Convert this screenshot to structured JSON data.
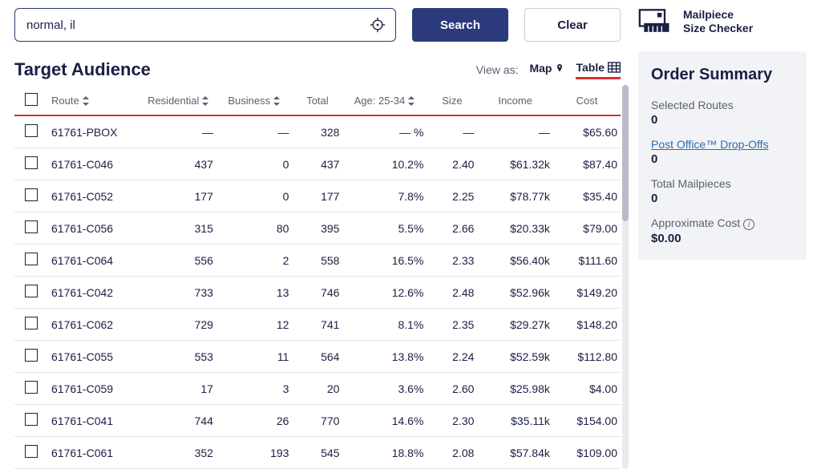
{
  "search": {
    "value": "normal, il"
  },
  "buttons": {
    "search": "Search",
    "clear": "Clear"
  },
  "tool": {
    "line1": "Mailpiece",
    "line2": "Size Checker"
  },
  "heading": "Target Audience",
  "viewAs": {
    "label": "View as:",
    "map": "Map",
    "table": "Table",
    "active": "table"
  },
  "columns": {
    "route": "Route",
    "residential": "Residential",
    "business": "Business",
    "total": "Total",
    "age": "Age: 25-34",
    "size": "Size",
    "income": "Income",
    "cost": "Cost"
  },
  "rows": [
    {
      "route": "61761-PBOX",
      "residential": "—",
      "business": "—",
      "total": "328",
      "age": "— %",
      "size": "—",
      "income": "—",
      "cost": "$65.60"
    },
    {
      "route": "61761-C046",
      "residential": "437",
      "business": "0",
      "total": "437",
      "age": "10.2%",
      "size": "2.40",
      "income": "$61.32k",
      "cost": "$87.40"
    },
    {
      "route": "61761-C052",
      "residential": "177",
      "business": "0",
      "total": "177",
      "age": "7.8%",
      "size": "2.25",
      "income": "$78.77k",
      "cost": "$35.40"
    },
    {
      "route": "61761-C056",
      "residential": "315",
      "business": "80",
      "total": "395",
      "age": "5.5%",
      "size": "2.66",
      "income": "$20.33k",
      "cost": "$79.00"
    },
    {
      "route": "61761-C064",
      "residential": "556",
      "business": "2",
      "total": "558",
      "age": "16.5%",
      "size": "2.33",
      "income": "$56.40k",
      "cost": "$111.60"
    },
    {
      "route": "61761-C042",
      "residential": "733",
      "business": "13",
      "total": "746",
      "age": "12.6%",
      "size": "2.48",
      "income": "$52.96k",
      "cost": "$149.20"
    },
    {
      "route": "61761-C062",
      "residential": "729",
      "business": "12",
      "total": "741",
      "age": "8.1%",
      "size": "2.35",
      "income": "$29.27k",
      "cost": "$148.20"
    },
    {
      "route": "61761-C055",
      "residential": "553",
      "business": "11",
      "total": "564",
      "age": "13.8%",
      "size": "2.24",
      "income": "$52.59k",
      "cost": "$112.80"
    },
    {
      "route": "61761-C059",
      "residential": "17",
      "business": "3",
      "total": "20",
      "age": "3.6%",
      "size": "2.60",
      "income": "$25.98k",
      "cost": "$4.00"
    },
    {
      "route": "61761-C041",
      "residential": "744",
      "business": "26",
      "total": "770",
      "age": "14.6%",
      "size": "2.30",
      "income": "$35.11k",
      "cost": "$154.00"
    },
    {
      "route": "61761-C061",
      "residential": "352",
      "business": "193",
      "total": "545",
      "age": "18.8%",
      "size": "2.08",
      "income": "$57.84k",
      "cost": "$109.00"
    }
  ],
  "summary": {
    "title": "Order Summary",
    "selectedRoutesLabel": "Selected Routes",
    "selectedRoutes": "0",
    "dropOffsLabel": "Post Office™ Drop-Offs",
    "dropOffs": "0",
    "mailpiecesLabel": "Total Mailpieces",
    "mailpieces": "0",
    "costLabel": "Approximate Cost",
    "cost": "$0.00"
  },
  "colors": {
    "primary": "#2b3a7b",
    "red": "#d9302e",
    "panel": "#f2f3f6",
    "link": "#2b6cb0",
    "text": "#1a1f44",
    "muted": "#5b6072"
  }
}
